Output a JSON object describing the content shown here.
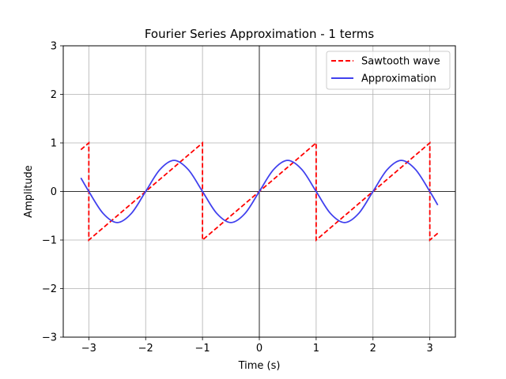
{
  "chart_data": {
    "type": "line",
    "title": "Fourier Series Approximation - 1 terms",
    "xlabel": "Time (s)",
    "ylabel": "Amplitude",
    "xlim": [
      -3.45,
      3.45
    ],
    "ylim": [
      -3,
      3
    ],
    "x_ticks": [
      -3,
      -2,
      -1,
      0,
      1,
      2,
      3
    ],
    "y_ticks": [
      -3,
      -2,
      -1,
      0,
      1,
      2,
      3
    ],
    "x_tick_labels": [
      "−3",
      "−2",
      "−1",
      "0",
      "1",
      "2",
      "3"
    ],
    "y_tick_labels": [
      "−3",
      "−2",
      "−1",
      "0",
      "1",
      "2",
      "3"
    ],
    "grid": true,
    "zero_lines": true,
    "legend_position": "top-right",
    "series": [
      {
        "name": "Sawtooth wave",
        "color": "#ff0000",
        "dash": "dashed",
        "x": [
          -3.14,
          -3.0,
          -3.0,
          -1.0,
          -1.0,
          1.0,
          1.0,
          3.0,
          3.0,
          3.14
        ],
        "y": [
          0.86,
          1.0,
          -1.0,
          1.0,
          -1.0,
          1.0,
          -1.0,
          1.0,
          -1.0,
          -0.86
        ]
      },
      {
        "name": "Approximation",
        "color": "#4040ee",
        "dash": "solid",
        "x": [
          -3.14,
          -3.0,
          -2.75,
          -2.5,
          -2.25,
          -2.0,
          -1.75,
          -1.5,
          -1.25,
          -1.0,
          -0.75,
          -0.5,
          -0.25,
          0.0,
          0.25,
          0.5,
          0.75,
          1.0,
          1.25,
          1.5,
          1.75,
          2.0,
          2.25,
          2.5,
          2.75,
          3.0,
          3.14
        ],
        "y": [
          0.28,
          0.0,
          -0.45,
          -0.64,
          -0.45,
          0.0,
          0.45,
          0.64,
          0.45,
          0.0,
          -0.45,
          -0.64,
          -0.45,
          0.0,
          0.45,
          0.64,
          0.45,
          0.0,
          -0.45,
          -0.64,
          -0.45,
          0.0,
          0.45,
          0.64,
          0.45,
          0.0,
          -0.28
        ]
      }
    ]
  }
}
